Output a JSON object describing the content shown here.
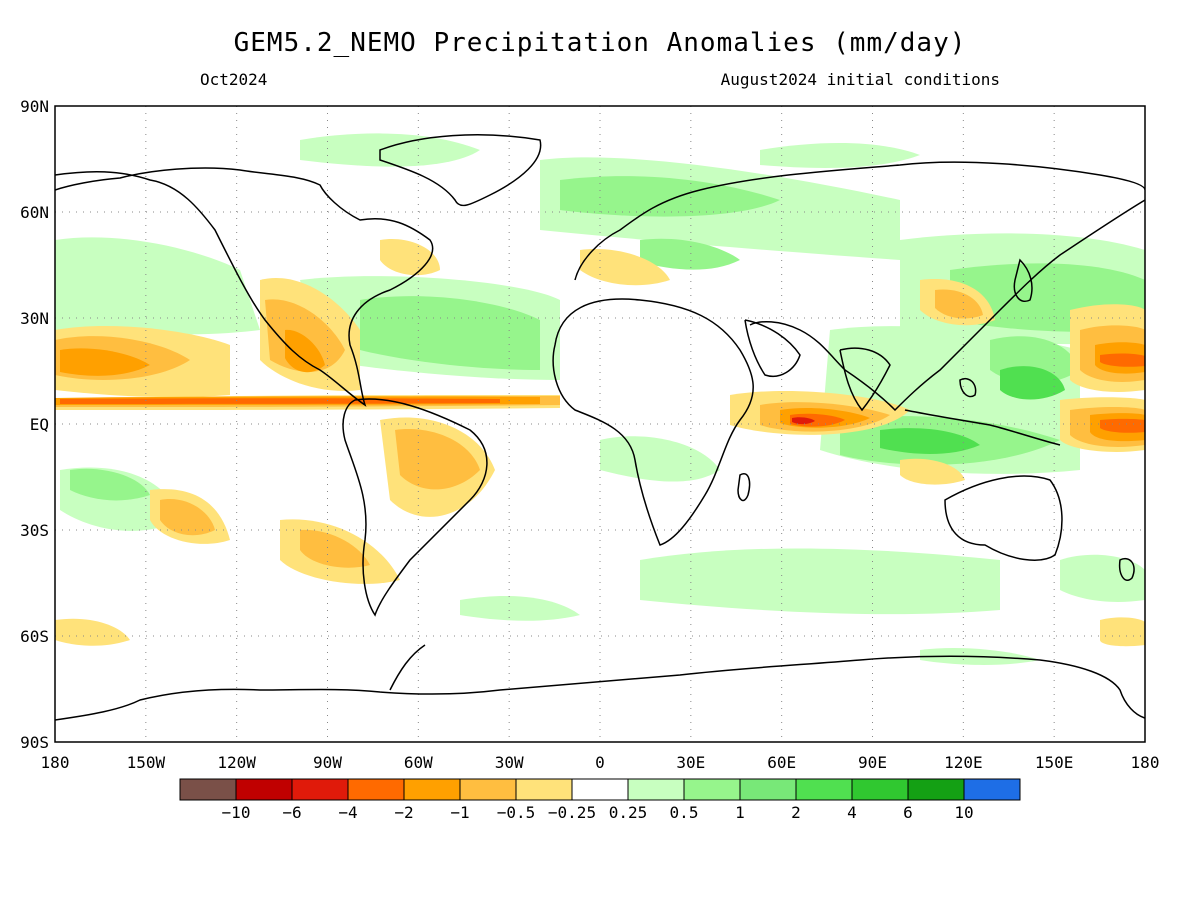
{
  "title": "GEM5.2_NEMO Precipitation Anomalies (mm/day)",
  "valid_month": "Oct2024",
  "init_label": "August2024 initial conditions",
  "lat_labels": [
    "90N",
    "60N",
    "30N",
    "EQ",
    "30S",
    "60S",
    "90S"
  ],
  "lon_labels": [
    "180",
    "150W",
    "120W",
    "90W",
    "60W",
    "30W",
    "0",
    "30E",
    "60E",
    "90E",
    "120E",
    "150E",
    "180"
  ],
  "colorbar": {
    "colors": [
      "#7a5048",
      "#c00000",
      "#e01a0a",
      "#ff6a00",
      "#ffa000",
      "#ffbe40",
      "#ffe27a",
      "#ffffff",
      "#c8ffc0",
      "#96f58c",
      "#78e878",
      "#50e050",
      "#30c830",
      "#14a014",
      "#1e6ee6"
    ],
    "labels": [
      "-10",
      "-6",
      "-4",
      "-2",
      "-1",
      "-0.5",
      "-0.25",
      "0.25",
      "0.5",
      "1",
      "2",
      "4",
      "6",
      "10"
    ]
  },
  "colors": {
    "dry_light": "#ffe27a",
    "dry_mid": "#ffbe40",
    "dry_strong": "#ffa000",
    "dry_heavy": "#ff6a00",
    "dry_extreme": "#e01a0a",
    "wet_light": "#c8ffc0",
    "wet_mid": "#96f58c",
    "wet_strong": "#50e050",
    "coast": "#000000"
  }
}
